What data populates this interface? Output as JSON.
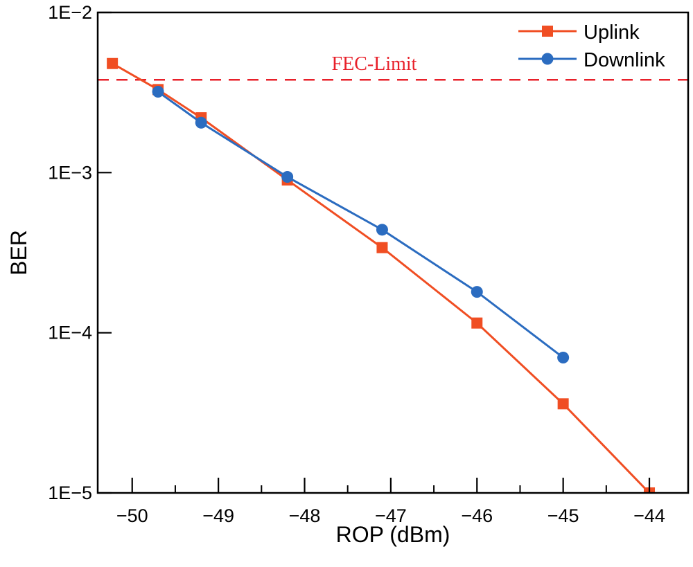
{
  "chart_data": {
    "type": "line",
    "title": "",
    "xlabel": "ROP (dBm)",
    "ylabel": "BER",
    "x_scale": "linear",
    "y_scale": "log",
    "xlim": [
      -50.4,
      -43.55
    ],
    "ylim": [
      1e-05,
      0.01
    ],
    "x_ticks": [
      -50,
      -49,
      -48,
      -47,
      -46,
      -45,
      -44
    ],
    "x_tick_labels": [
      "−50",
      "−49",
      "−48",
      "−47",
      "−46",
      "−45",
      "−44"
    ],
    "y_ticks": [
      1e-05,
      0.0001,
      0.001,
      0.01
    ],
    "y_tick_labels": [
      "1E−5",
      "1E−4",
      "1E−3",
      "1E−2"
    ],
    "grid": false,
    "legend_position": "top-right",
    "series": [
      {
        "name": "Uplink",
        "color": "#f04e23",
        "marker": "square",
        "x": [
          -50.23,
          -49.7,
          -49.2,
          -48.2,
          -47.1,
          -46.0,
          -45.0,
          -44.0
        ],
        "y": [
          0.0048,
          0.0033,
          0.0022,
          0.0009,
          0.00034,
          0.000115,
          3.6e-05,
          1e-05
        ]
      },
      {
        "name": "Downlink",
        "color": "#2b6cc0",
        "marker": "circle",
        "x": [
          -49.7,
          -49.2,
          -48.2,
          -47.1,
          -46.0,
          -45.0
        ],
        "y": [
          0.0032,
          0.00205,
          0.00094,
          0.00044,
          0.00018,
          7e-05
        ]
      }
    ],
    "annotations": [
      {
        "type": "hline",
        "y": 0.0038,
        "label": "FEC-Limit",
        "color": "#e8202a",
        "style": "dashed"
      }
    ]
  }
}
